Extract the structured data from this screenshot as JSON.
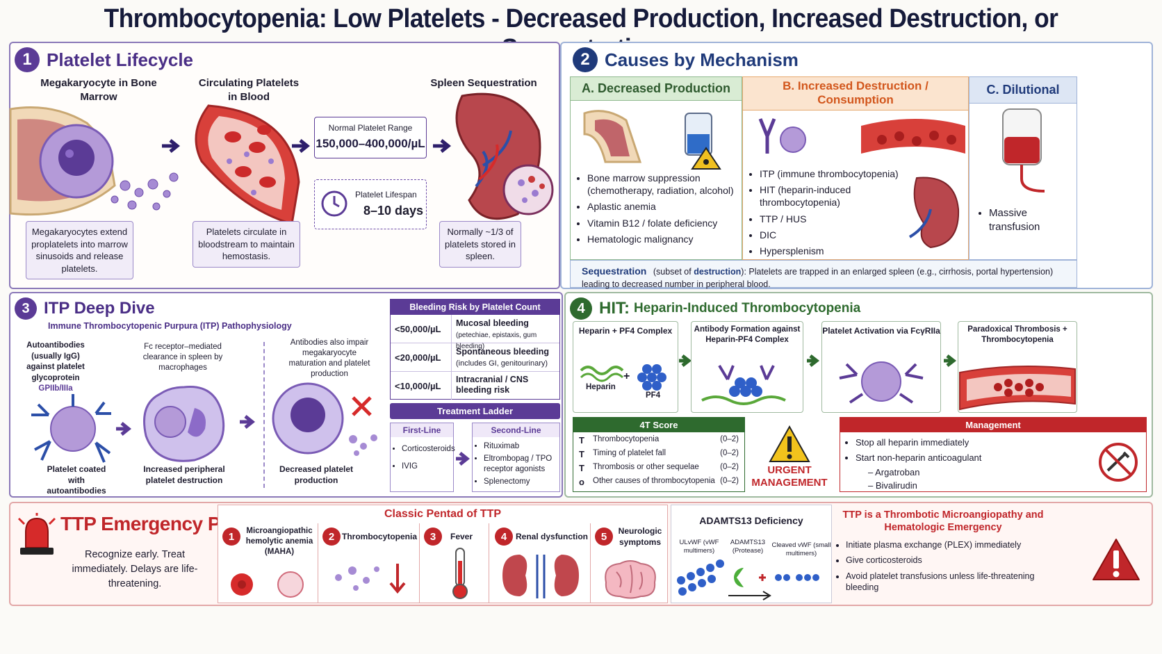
{
  "title": "Thrombocytopenia: Low Platelets - Decreased Production, Increased Destruction, or Sequestration",
  "lifecycle": {
    "num": "1",
    "title": "Platelet Lifecycle",
    "mega_label": "Megakaryocyte in Bone Marrow",
    "circ_label": "Circulating Platelets in Blood",
    "spleen_label": "Spleen Sequestration",
    "range_title": "Normal Platelet Range",
    "range_value": "150,000–400,000/µL",
    "lifespan_title": "Platelet Lifespan",
    "lifespan_value": "8–10 days",
    "mega_caption": "Megakaryocytes extend proplatelets into marrow sinusoids and release platelets.",
    "circ_caption": "Platelets circulate in bloodstream to maintain hemostasis.",
    "spleen_caption": "Normally ~1/3 of platelets stored in spleen."
  },
  "causes": {
    "num": "2",
    "title": "Causes by Mechanism",
    "a_title": "A. Decreased Production",
    "a_items": [
      "Bone marrow suppression (chemotherapy, radiation, alcohol)",
      "Aplastic anemia",
      "Vitamin B12 / folate deficiency",
      "Hematologic malignancy"
    ],
    "b_title": "B. Increased Destruction / Consumption",
    "b_items": [
      "ITP (immune thrombocytopenia)",
      "HIT (heparin-induced thrombocytopenia)",
      "TTP / HUS",
      "DIC",
      "Hypersplenism"
    ],
    "c_title": "C. Dilutional",
    "c_items": [
      "Massive transfusion"
    ],
    "seq_word": "Sequestration",
    "seq_sub1": "(subset of ",
    "seq_sub2": "destruction",
    "seq_text": "): Platelets are trapped in an enlarged spleen (e.g., cirrhosis, portal hypertension) leading to decreased number in peripheral blood."
  },
  "itp": {
    "num": "3",
    "title": "ITP Deep Dive",
    "subtitle": "Immune Thrombocytopenic Purpura (ITP) Pathophysiology",
    "auto_label": "Autoantibodies (usually IgG) against platelet glycoprotein",
    "gp_label": "GPIIb/IIIa",
    "fc_label": "Fc receptor–mediated clearance in spleen by macrophages",
    "impair_label": "Antibodies also impair megakaryocyte maturation and platelet production",
    "coated_caption": "Platelet coated with autoantibodies",
    "destruct_caption": "Increased peripheral platelet destruction",
    "decreased_caption": "Decreased platelet production",
    "risk_title": "Bleeding Risk by Platelet Count",
    "risk_rows": [
      {
        "count": "<50,000/µL",
        "main": "Mucosal bleeding",
        "sub": "(petechiae, epistaxis, gum bleeding)"
      },
      {
        "count": "<20,000/µL",
        "main": "Spontaneous bleeding",
        "sub": "(includes GI, genitourinary)"
      },
      {
        "count": "<10,000/µL",
        "main": "Intracranial / CNS",
        "sub": "bleeding risk"
      }
    ],
    "ladder_title": "Treatment Ladder",
    "first_title": "First-Line",
    "first_items": [
      "Corticosteroids",
      "IVIG"
    ],
    "second_title": "Second-Line",
    "second_items": [
      "Rituximab",
      "Eltrombopag / TPO receptor agonists",
      "Splenectomy"
    ]
  },
  "hit": {
    "num": "4",
    "title_a": "HIT:",
    "title_b": "Heparin-Induced Thrombocytopenia",
    "step1": "Heparin + PF4 Complex",
    "heparin": "Heparin",
    "plus": "+",
    "pf4": "PF4",
    "step2": "Antibody Formation against Heparin-PF4 Complex",
    "step3": "Platelet Activation via FcγRIIa",
    "step4": "Paradoxical Thrombosis + Thrombocytopenia",
    "score_title": "4T Score",
    "score_rows": [
      {
        "l": "T",
        "t": "Thrombocytopenia",
        "p": "(0–2)"
      },
      {
        "l": "T",
        "t": "Timing of platelet fall",
        "p": "(0–2)"
      },
      {
        "l": "T",
        "t": "Thrombosis or other sequelae",
        "p": "(0–2)"
      },
      {
        "l": "o",
        "t": "Other causes of thrombocytopenia",
        "p": "(0–2)"
      }
    ],
    "urgent": "URGENT MANAGEMENT",
    "mgmt_title": "Management",
    "mgmt_items": [
      "Stop all heparin immediately",
      "Start non-heparin anticoagulant"
    ],
    "mgmt_sub": [
      "– Argatroban",
      "– Bivalirudin"
    ]
  },
  "ttp": {
    "title": "TTP Emergency Pearls",
    "subtitle": "Recognize early. Treat immediately. Delays are life-threatening.",
    "pentad_title": "Classic Pentad of TTP",
    "pentad": [
      {
        "n": "1",
        "label": "Microangiopathic hemolytic anemia",
        "extra": "(MAHA)"
      },
      {
        "n": "2",
        "label": "Thrombocytopenia",
        "extra": ""
      },
      {
        "n": "3",
        "label": "Fever",
        "extra": ""
      },
      {
        "n": "4",
        "label": "Renal dysfunction",
        "extra": ""
      },
      {
        "n": "5",
        "label": "Neurologic symptoms",
        "extra": ""
      }
    ],
    "adamts_title": "ADAMTS13 Deficiency",
    "ulvwf": "ULvWF (vWF multimers)",
    "adamts": "ADAMTS13 (Protease)",
    "cleaved": "Cleaved vWF (small multimers)",
    "tma_title": "TTP is a Thrombotic Microangiopathy and Hematologic Emergency",
    "tma_items": [
      "Initiate plasma exchange (PLEX) immediately",
      "Give corticosteroids",
      "Avoid platelet transfusions unless life-threatening bleeding"
    ]
  },
  "colors": {
    "purple": "#5b3b96",
    "navy": "#1f3a7a",
    "green": "#2e6a2e",
    "red": "#c0262a",
    "orange": "#e2691d"
  }
}
